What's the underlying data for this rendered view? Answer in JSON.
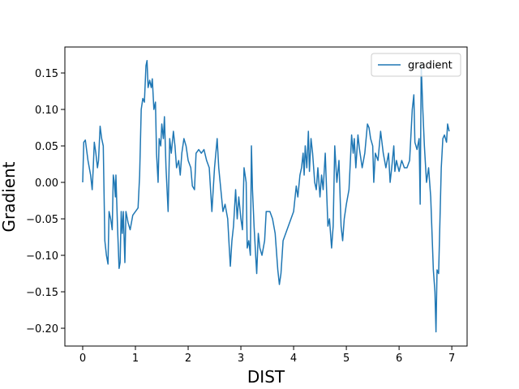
{
  "chart_data": {
    "type": "line",
    "x_label": "DIST",
    "y_label": "Gradient",
    "x": [
      0.0,
      0.02,
      0.05,
      0.1,
      0.15,
      0.18,
      0.2,
      0.22,
      0.25,
      0.28,
      0.3,
      0.33,
      0.36,
      0.39,
      0.42,
      0.45,
      0.48,
      0.5,
      0.53,
      0.56,
      0.58,
      0.6,
      0.62,
      0.63,
      0.66,
      0.69,
      0.71,
      0.73,
      0.75,
      0.77,
      0.8,
      0.82,
      0.86,
      0.9,
      0.95,
      1.0,
      1.05,
      1.08,
      1.11,
      1.14,
      1.17,
      1.2,
      1.22,
      1.24,
      1.27,
      1.3,
      1.32,
      1.35,
      1.38,
      1.4,
      1.43,
      1.45,
      1.48,
      1.5,
      1.53,
      1.55,
      1.58,
      1.6,
      1.62,
      1.65,
      1.68,
      1.72,
      1.75,
      1.78,
      1.82,
      1.85,
      1.88,
      1.92,
      1.96,
      2.0,
      2.05,
      2.08,
      2.12,
      2.15,
      2.2,
      2.25,
      2.3,
      2.35,
      2.4,
      2.45,
      2.5,
      2.55,
      2.58,
      2.62,
      2.66,
      2.7,
      2.75,
      2.78,
      2.8,
      2.83,
      2.86,
      2.9,
      2.93,
      2.96,
      3.0,
      3.03,
      3.06,
      3.1,
      3.12,
      3.15,
      3.18,
      3.2,
      3.22,
      3.25,
      3.28,
      3.3,
      3.33,
      3.36,
      3.4,
      3.45,
      3.48,
      3.55,
      3.6,
      3.65,
      3.7,
      3.73,
      3.76,
      3.8,
      3.85,
      3.9,
      3.95,
      4.0,
      4.05,
      4.08,
      4.12,
      4.15,
      4.18,
      4.2,
      4.22,
      4.25,
      4.28,
      4.3,
      4.33,
      4.36,
      4.4,
      4.43,
      4.46,
      4.5,
      4.53,
      4.56,
      4.6,
      4.65,
      4.68,
      4.72,
      4.75,
      4.78,
      4.82,
      4.86,
      4.9,
      4.93,
      4.96,
      5.0,
      5.05,
      5.1,
      5.13,
      5.15,
      5.18,
      5.22,
      5.25,
      5.3,
      5.35,
      5.4,
      5.43,
      5.46,
      5.5,
      5.52,
      5.55,
      5.6,
      5.65,
      5.7,
      5.75,
      5.8,
      5.83,
      5.86,
      5.9,
      5.92,
      5.95,
      6.0,
      6.05,
      6.1,
      6.15,
      6.2,
      6.25,
      6.28,
      6.3,
      6.34,
      6.38,
      6.4,
      6.42,
      6.45,
      6.48,
      6.52,
      6.56,
      6.6,
      6.65,
      6.68,
      6.7,
      6.72,
      6.75,
      6.8,
      6.83,
      6.86,
      6.9,
      6.92,
      6.95
    ],
    "series": [
      {
        "name": "gradient",
        "color": "#1f77b4",
        "values": [
          0.0,
          0.055,
          0.058,
          0.03,
          0.01,
          -0.01,
          0.02,
          0.055,
          0.04,
          0.02,
          0.03,
          0.077,
          0.06,
          0.05,
          -0.08,
          -0.1,
          -0.112,
          -0.04,
          -0.05,
          -0.065,
          0.01,
          0.0,
          -0.02,
          0.01,
          -0.06,
          -0.118,
          -0.11,
          -0.04,
          -0.07,
          -0.04,
          -0.11,
          -0.04,
          -0.055,
          -0.065,
          -0.045,
          -0.04,
          -0.035,
          0.01,
          0.1,
          0.115,
          0.11,
          0.16,
          0.167,
          0.13,
          0.14,
          0.13,
          0.142,
          0.1,
          0.11,
          0.04,
          0.0,
          0.06,
          0.05,
          0.08,
          0.06,
          0.09,
          0.02,
          -0.01,
          -0.04,
          0.06,
          0.04,
          0.07,
          0.05,
          0.02,
          0.03,
          0.01,
          0.04,
          0.06,
          0.05,
          0.03,
          0.02,
          -0.005,
          -0.01,
          0.04,
          0.045,
          0.04,
          0.045,
          0.03,
          0.02,
          -0.04,
          0.02,
          0.06,
          0.02,
          -0.01,
          -0.04,
          -0.03,
          -0.05,
          -0.09,
          -0.115,
          -0.08,
          -0.06,
          -0.01,
          -0.05,
          -0.02,
          -0.05,
          -0.065,
          0.02,
          0.0,
          -0.09,
          -0.08,
          -0.1,
          0.05,
          -0.01,
          -0.06,
          -0.1,
          -0.125,
          -0.07,
          -0.09,
          -0.1,
          -0.08,
          -0.04,
          -0.04,
          -0.05,
          -0.07,
          -0.12,
          -0.14,
          -0.125,
          -0.08,
          -0.07,
          -0.06,
          -0.05,
          -0.04,
          -0.005,
          -0.02,
          0.01,
          0.02,
          0.04,
          0.01,
          0.05,
          0.02,
          0.07,
          0.015,
          0.06,
          0.04,
          0.0,
          -0.01,
          0.02,
          -0.02,
          0.01,
          -0.01,
          0.04,
          -0.06,
          -0.05,
          -0.09,
          -0.06,
          0.05,
          0.0,
          0.03,
          -0.06,
          -0.08,
          -0.05,
          -0.03,
          -0.01,
          0.065,
          0.04,
          0.06,
          0.02,
          0.065,
          0.045,
          0.02,
          0.04,
          0.08,
          0.075,
          0.06,
          0.05,
          0.0,
          0.04,
          0.03,
          0.07,
          0.04,
          0.02,
          0.04,
          0.0,
          0.02,
          0.05,
          0.015,
          0.03,
          0.015,
          0.03,
          0.02,
          0.02,
          0.03,
          0.1,
          0.12,
          0.055,
          0.045,
          0.06,
          -0.03,
          0.16,
          0.1,
          0.05,
          0.0,
          0.02,
          -0.02,
          -0.12,
          -0.15,
          -0.205,
          -0.12,
          -0.125,
          0.02,
          0.06,
          0.065,
          0.055,
          0.08,
          0.07
        ]
      }
    ],
    "xlim": [
      -0.338,
      7.29
    ],
    "ylim": [
      -0.2244,
      0.1856
    ],
    "xticks": [
      0,
      1,
      2,
      3,
      4,
      5,
      6,
      7
    ],
    "yticks": [
      {
        "value": -0.2,
        "label": "−0.20"
      },
      {
        "value": -0.15,
        "label": "−0.15"
      },
      {
        "value": -0.1,
        "label": "−0.10"
      },
      {
        "value": -0.05,
        "label": "−0.05"
      },
      {
        "value": 0,
        "label": "0.00"
      },
      0.05,
      {
        "value": 0.1,
        "label": "0.10"
      },
      0.15
    ],
    "legend": "upper right",
    "grid": false
  }
}
